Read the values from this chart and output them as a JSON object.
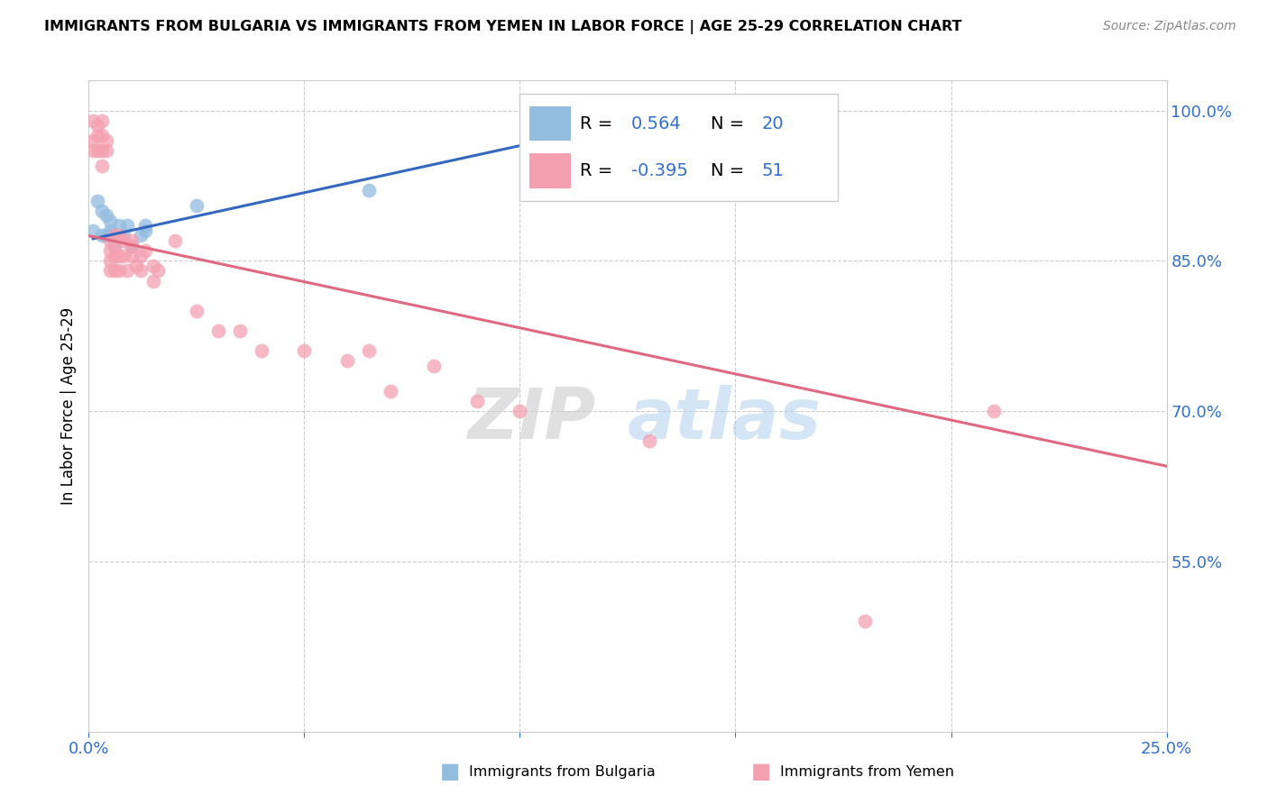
{
  "title": "IMMIGRANTS FROM BULGARIA VS IMMIGRANTS FROM YEMEN IN LABOR FORCE | AGE 25-29 CORRELATION CHART",
  "source": "Source: ZipAtlas.com",
  "ylabel": "In Labor Force | Age 25-29",
  "xlim": [
    0.0,
    0.25
  ],
  "ylim": [
    0.38,
    1.03
  ],
  "xticks": [
    0.0,
    0.05,
    0.1,
    0.15,
    0.2,
    0.25
  ],
  "yticks_right": [
    1.0,
    0.85,
    0.7,
    0.55
  ],
  "yticklabels_right": [
    "100.0%",
    "85.0%",
    "70.0%",
    "55.0%"
  ],
  "color_bulgaria": "#92bce0",
  "color_yemen": "#f4a0b0",
  "line_color_bulgaria": "#3468c0",
  "line_color_yemen": "#e06880",
  "watermark_zip": "ZIP",
  "watermark_atlas": "atlas",
  "bulgaria_x": [
    0.001,
    0.002,
    0.003,
    0.003,
    0.004,
    0.004,
    0.005,
    0.005,
    0.005,
    0.006,
    0.007,
    0.008,
    0.009,
    0.01,
    0.012,
    0.013,
    0.013,
    0.025,
    0.065,
    0.13
  ],
  "bulgaria_y": [
    0.88,
    0.91,
    0.875,
    0.9,
    0.875,
    0.895,
    0.88,
    0.89,
    0.875,
    0.865,
    0.885,
    0.875,
    0.885,
    0.865,
    0.875,
    0.88,
    0.885,
    0.905,
    0.92,
    0.99
  ],
  "yemen_x": [
    0.001,
    0.001,
    0.001,
    0.002,
    0.002,
    0.002,
    0.003,
    0.003,
    0.003,
    0.003,
    0.004,
    0.004,
    0.005,
    0.005,
    0.005,
    0.005,
    0.006,
    0.006,
    0.006,
    0.006,
    0.007,
    0.007,
    0.007,
    0.008,
    0.008,
    0.009,
    0.01,
    0.01,
    0.01,
    0.011,
    0.012,
    0.012,
    0.013,
    0.015,
    0.015,
    0.016,
    0.02,
    0.025,
    0.03,
    0.035,
    0.04,
    0.05,
    0.06,
    0.065,
    0.07,
    0.08,
    0.09,
    0.1,
    0.13,
    0.18,
    0.21
  ],
  "yemen_y": [
    0.99,
    0.97,
    0.96,
    0.985,
    0.975,
    0.96,
    0.99,
    0.975,
    0.96,
    0.945,
    0.97,
    0.96,
    0.87,
    0.86,
    0.85,
    0.84,
    0.875,
    0.865,
    0.855,
    0.84,
    0.875,
    0.855,
    0.84,
    0.87,
    0.855,
    0.84,
    0.865,
    0.855,
    0.87,
    0.845,
    0.855,
    0.84,
    0.86,
    0.845,
    0.83,
    0.84,
    0.87,
    0.8,
    0.78,
    0.78,
    0.76,
    0.76,
    0.75,
    0.76,
    0.72,
    0.745,
    0.71,
    0.7,
    0.67,
    0.49,
    0.7
  ],
  "line_bulgaria_x0": 0.001,
  "line_bulgaria_x1": 0.13,
  "line_bulgaria_y0": 0.872,
  "line_bulgaria_y1": 0.993,
  "line_yemen_x0": 0.0,
  "line_yemen_x1": 0.25,
  "line_yemen_y0": 0.875,
  "line_yemen_y1": 0.645
}
